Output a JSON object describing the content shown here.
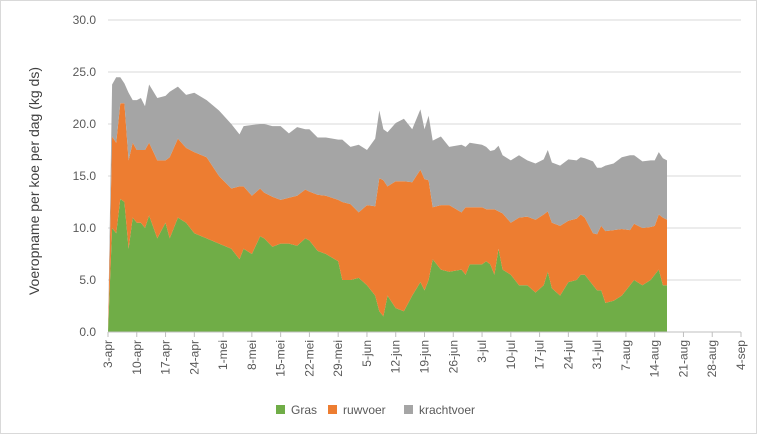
{
  "chart_data": {
    "type": "area",
    "stacked": true,
    "title": "",
    "ylabel": "Voeropname per koe per dag (kg ds)",
    "xlabel": "",
    "ylim": [
      0,
      30
    ],
    "yticks": [
      "0.0",
      "5.0",
      "10.0",
      "15.0",
      "20.0",
      "25.0",
      "30.0"
    ],
    "ytick_values": [
      0,
      5,
      10,
      15,
      20,
      25,
      30
    ],
    "grid": "horizontal",
    "legend_position": "bottom",
    "x_tick_labels": [
      "3-apr",
      "10-apr",
      "17-apr",
      "24-apr",
      "1-mei",
      "8-mei",
      "15-mei",
      "22-mei",
      "29-mei",
      "5-jun",
      "12-jun",
      "19-jun",
      "26-jun",
      "3-jul",
      "10-jul",
      "17-jul",
      "24-jul",
      "31-jul",
      "7-aug",
      "14-aug",
      "21-aug",
      "28-aug",
      "4-sep"
    ],
    "x_tick_days": [
      0,
      7,
      14,
      21,
      28,
      35,
      42,
      49,
      56,
      63,
      70,
      77,
      84,
      91,
      98,
      105,
      112,
      119,
      126,
      133,
      140,
      147,
      154
    ],
    "x_domain_days": [
      0,
      154
    ],
    "series": [
      {
        "name": "Gras",
        "color": "#70AD47",
        "points": [
          [
            0,
            0
          ],
          [
            1,
            10
          ],
          [
            2,
            9.5
          ],
          [
            3,
            12.8
          ],
          [
            4,
            12.5
          ],
          [
            5,
            8
          ],
          [
            6,
            11
          ],
          [
            7,
            10.5
          ],
          [
            8,
            10.5
          ],
          [
            9,
            10
          ],
          [
            10,
            11.2
          ],
          [
            12,
            9
          ],
          [
            14,
            10.5
          ],
          [
            15,
            9
          ],
          [
            17,
            11
          ],
          [
            19,
            10.5
          ],
          [
            21,
            9.5
          ],
          [
            24,
            9
          ],
          [
            27,
            8.5
          ],
          [
            30,
            8
          ],
          [
            32,
            7
          ],
          [
            33,
            8
          ],
          [
            35,
            7.5
          ],
          [
            37,
            9.2
          ],
          [
            38,
            9
          ],
          [
            40,
            8.2
          ],
          [
            42,
            8.5
          ],
          [
            44,
            8.5
          ],
          [
            46,
            8.3
          ],
          [
            48,
            9
          ],
          [
            49,
            8.8
          ],
          [
            51,
            7.8
          ],
          [
            53,
            7.5
          ],
          [
            56,
            6.8
          ],
          [
            57,
            5
          ],
          [
            59,
            5
          ],
          [
            61,
            5.2
          ],
          [
            63,
            4.5
          ],
          [
            65,
            3.5
          ],
          [
            66,
            2
          ],
          [
            67,
            1.5
          ],
          [
            68,
            3.5
          ],
          [
            70,
            2.3
          ],
          [
            72,
            2
          ],
          [
            74,
            3.5
          ],
          [
            76,
            4.8
          ],
          [
            77,
            4
          ],
          [
            78,
            5
          ],
          [
            79,
            7
          ],
          [
            81,
            6
          ],
          [
            83,
            5.8
          ],
          [
            86,
            6
          ],
          [
            87,
            5.5
          ],
          [
            88,
            6.5
          ],
          [
            91,
            6.5
          ],
          [
            92,
            6.8
          ],
          [
            93,
            6.5
          ],
          [
            94,
            5.5
          ],
          [
            95,
            8
          ],
          [
            96,
            6
          ],
          [
            98,
            5.5
          ],
          [
            100,
            4.5
          ],
          [
            102,
            4.5
          ],
          [
            104,
            3.8
          ],
          [
            106,
            4.5
          ],
          [
            107,
            5.8
          ],
          [
            108,
            4.2
          ],
          [
            110,
            3.5
          ],
          [
            112,
            4.8
          ],
          [
            114,
            5
          ],
          [
            115,
            5.5
          ],
          [
            116,
            5.5
          ],
          [
            118,
            4.5
          ],
          [
            119,
            4
          ],
          [
            120,
            4
          ],
          [
            121,
            2.8
          ],
          [
            123,
            3
          ],
          [
            125,
            3.5
          ],
          [
            127,
            4.5
          ],
          [
            128,
            5
          ],
          [
            130,
            4.5
          ],
          [
            132,
            5
          ],
          [
            133,
            5.5
          ],
          [
            134,
            6
          ],
          [
            135,
            4.5
          ],
          [
            136,
            4.5
          ]
        ]
      },
      {
        "name": "ruwvoer",
        "color": "#ED7D31",
        "points": [
          [
            0,
            0
          ],
          [
            1,
            8.8
          ],
          [
            2,
            8.7
          ],
          [
            3,
            9.2
          ],
          [
            4,
            9.5
          ],
          [
            5,
            8.5
          ],
          [
            6,
            7.2
          ],
          [
            7,
            7.0
          ],
          [
            8,
            7.0
          ],
          [
            9,
            7.5
          ],
          [
            10,
            7.0
          ],
          [
            12,
            7.5
          ],
          [
            14,
            6.0
          ],
          [
            15,
            7.8
          ],
          [
            17,
            7.6
          ],
          [
            19,
            7.2
          ],
          [
            21,
            7.8
          ],
          [
            24,
            7.8
          ],
          [
            27,
            6.5
          ],
          [
            30,
            5.8
          ],
          [
            32,
            7.0
          ],
          [
            33,
            6.0
          ],
          [
            35,
            5.6
          ],
          [
            37,
            4.6
          ],
          [
            38,
            4.4
          ],
          [
            40,
            4.8
          ],
          [
            42,
            4.2
          ],
          [
            44,
            4.4
          ],
          [
            46,
            4.8
          ],
          [
            48,
            4.7
          ],
          [
            49,
            4.7
          ],
          [
            51,
            5.4
          ],
          [
            53,
            5.6
          ],
          [
            56,
            5.9
          ],
          [
            57,
            7.5
          ],
          [
            59,
            7.3
          ],
          [
            61,
            6.3
          ],
          [
            63,
            7.7
          ],
          [
            65,
            8.6
          ],
          [
            66,
            12.8
          ],
          [
            67,
            13.1
          ],
          [
            68,
            10.5
          ],
          [
            70,
            12.2
          ],
          [
            72,
            12.5
          ],
          [
            74,
            10.9
          ],
          [
            76,
            10.8
          ],
          [
            77,
            10.7
          ],
          [
            78,
            9.6
          ],
          [
            79,
            5.0
          ],
          [
            81,
            6.2
          ],
          [
            83,
            6.4
          ],
          [
            86,
            5.5
          ],
          [
            87,
            6.5
          ],
          [
            88,
            5.5
          ],
          [
            91,
            5.5
          ],
          [
            92,
            5.0
          ],
          [
            93,
            5.3
          ],
          [
            94,
            6.3
          ],
          [
            95,
            3.6
          ],
          [
            96,
            5.4
          ],
          [
            98,
            5.0
          ],
          [
            100,
            6.5
          ],
          [
            102,
            6.6
          ],
          [
            104,
            7.0
          ],
          [
            106,
            6.8
          ],
          [
            107,
            5.8
          ],
          [
            108,
            6.3
          ],
          [
            110,
            6.7
          ],
          [
            112,
            5.9
          ],
          [
            114,
            5.9
          ],
          [
            115,
            5.8
          ],
          [
            116,
            5.5
          ],
          [
            118,
            5.0
          ],
          [
            119,
            5.4
          ],
          [
            120,
            6.2
          ],
          [
            121,
            6.9
          ],
          [
            123,
            6.8
          ],
          [
            125,
            6.4
          ],
          [
            127,
            5.3
          ],
          [
            128,
            5.4
          ],
          [
            130,
            5.5
          ],
          [
            132,
            5.1
          ],
          [
            133,
            4.7
          ],
          [
            134,
            5.3
          ],
          [
            135,
            6.5
          ],
          [
            136,
            6.3
          ]
        ]
      },
      {
        "name": "krachtvoer",
        "color": "#A5A5A5",
        "points": [
          [
            0,
            0
          ],
          [
            1,
            5.0
          ],
          [
            2,
            6.3
          ],
          [
            3,
            2.5
          ],
          [
            4,
            1.9
          ],
          [
            5,
            6.5
          ],
          [
            6,
            4.1
          ],
          [
            7,
            4.8
          ],
          [
            8,
            5.0
          ],
          [
            9,
            4.2
          ],
          [
            10,
            5.6
          ],
          [
            12,
            6.0
          ],
          [
            14,
            6.2
          ],
          [
            15,
            6.3
          ],
          [
            17,
            5.0
          ],
          [
            19,
            5.1
          ],
          [
            21,
            5.7
          ],
          [
            24,
            5.5
          ],
          [
            27,
            6.3
          ],
          [
            30,
            6.2
          ],
          [
            32,
            5.0
          ],
          [
            33,
            5.8
          ],
          [
            35,
            6.8
          ],
          [
            37,
            6.2
          ],
          [
            38,
            6.6
          ],
          [
            40,
            6.8
          ],
          [
            42,
            7.1
          ],
          [
            44,
            6.2
          ],
          [
            46,
            6.6
          ],
          [
            48,
            5.8
          ],
          [
            49,
            6.0
          ],
          [
            51,
            5.5
          ],
          [
            53,
            5.6
          ],
          [
            56,
            5.8
          ],
          [
            57,
            6.0
          ],
          [
            59,
            5.5
          ],
          [
            61,
            6.5
          ],
          [
            63,
            5.3
          ],
          [
            65,
            6.5
          ],
          [
            66,
            6.5
          ],
          [
            67,
            4.9
          ],
          [
            68,
            5.2
          ],
          [
            70,
            5.6
          ],
          [
            72,
            6.0
          ],
          [
            74,
            5.1
          ],
          [
            76,
            5.8
          ],
          [
            77,
            4.8
          ],
          [
            78,
            6.2
          ],
          [
            79,
            6.4
          ],
          [
            81,
            6.6
          ],
          [
            83,
            5.6
          ],
          [
            86,
            6.5
          ],
          [
            87,
            5.8
          ],
          [
            88,
            6.2
          ],
          [
            91,
            6.0
          ],
          [
            92,
            6.0
          ],
          [
            93,
            5.6
          ],
          [
            94,
            5.7
          ],
          [
            95,
            6.3
          ],
          [
            96,
            5.6
          ],
          [
            98,
            6.0
          ],
          [
            100,
            6.0
          ],
          [
            102,
            5.4
          ],
          [
            104,
            5.4
          ],
          [
            106,
            5.3
          ],
          [
            107,
            5.9
          ],
          [
            108,
            5.8
          ],
          [
            110,
            5.8
          ],
          [
            112,
            5.9
          ],
          [
            114,
            5.6
          ],
          [
            115,
            5.5
          ],
          [
            116,
            5.7
          ],
          [
            118,
            6.9
          ],
          [
            119,
            6.4
          ],
          [
            120,
            5.6
          ],
          [
            121,
            6.3
          ],
          [
            123,
            6.4
          ],
          [
            125,
            6.9
          ],
          [
            127,
            7.2
          ],
          [
            128,
            6.6
          ],
          [
            130,
            6.4
          ],
          [
            132,
            6.4
          ],
          [
            133,
            6.3
          ],
          [
            134,
            6.0
          ],
          [
            135,
            5.7
          ],
          [
            136,
            5.7
          ]
        ]
      }
    ]
  }
}
